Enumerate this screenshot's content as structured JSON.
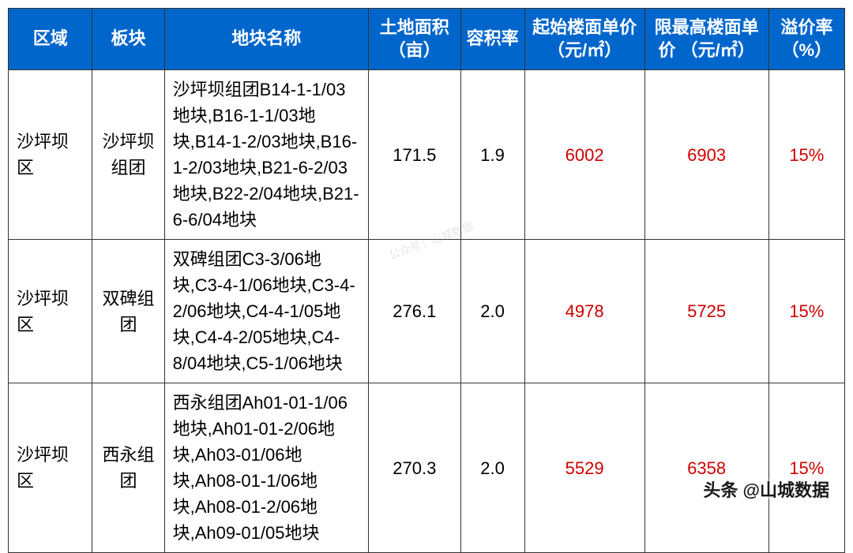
{
  "table": {
    "headers": {
      "region": "区域",
      "block": "板块",
      "name": "地块名称",
      "area": "土地面积（亩）",
      "ratio": "容积率",
      "start_price": "起始楼面单价（元/㎡）",
      "max_price": "限最高楼面单价 （元/㎡）",
      "premium": "溢价率（%）"
    },
    "header_bg": "#0066cc",
    "header_fg": "#ffffff",
    "border_color": "#333333",
    "red_color": "#d00000",
    "rows": [
      {
        "region": "沙坪坝区",
        "block": "沙坪坝组团",
        "name": "沙坪坝组团B14-1-1/03地块,B16-1-1/03地块,B14-1-2/03地块,B16-1-2/03地块,B21-6-2/03地块,B22-2/04地块,B21-6-6/04地块",
        "area": "171.5",
        "ratio": "1.9",
        "start_price": "6002",
        "max_price": "6903",
        "premium": "15%"
      },
      {
        "region": "沙坪坝区",
        "block": "双碑组团",
        "name": "双碑组团C3-3/06地块,C3-4-1/06地块,C3-4-2/06地块,C4-4-1/05地块,C4-4-2/05地块,C4-8/04地块,C5-1/06地块",
        "area": "276.1",
        "ratio": "2.0",
        "start_price": "4978",
        "max_price": "5725",
        "premium": "15%"
      },
      {
        "region": "沙坪坝区",
        "block": "西永组团",
        "name": "西永组团Ah01-01-1/06地块,Ah01-01-2/06地块,Ah03-01/06地块,Ah08-01-1/06地块,Ah08-01-2/06地块,Ah09-01/05地块",
        "area": "270.3",
        "ratio": "2.0",
        "start_price": "5529",
        "max_price": "6358",
        "premium": "15%"
      }
    ]
  },
  "watermark": "公众号：山城数据",
  "credit": "头条 @山城数据"
}
